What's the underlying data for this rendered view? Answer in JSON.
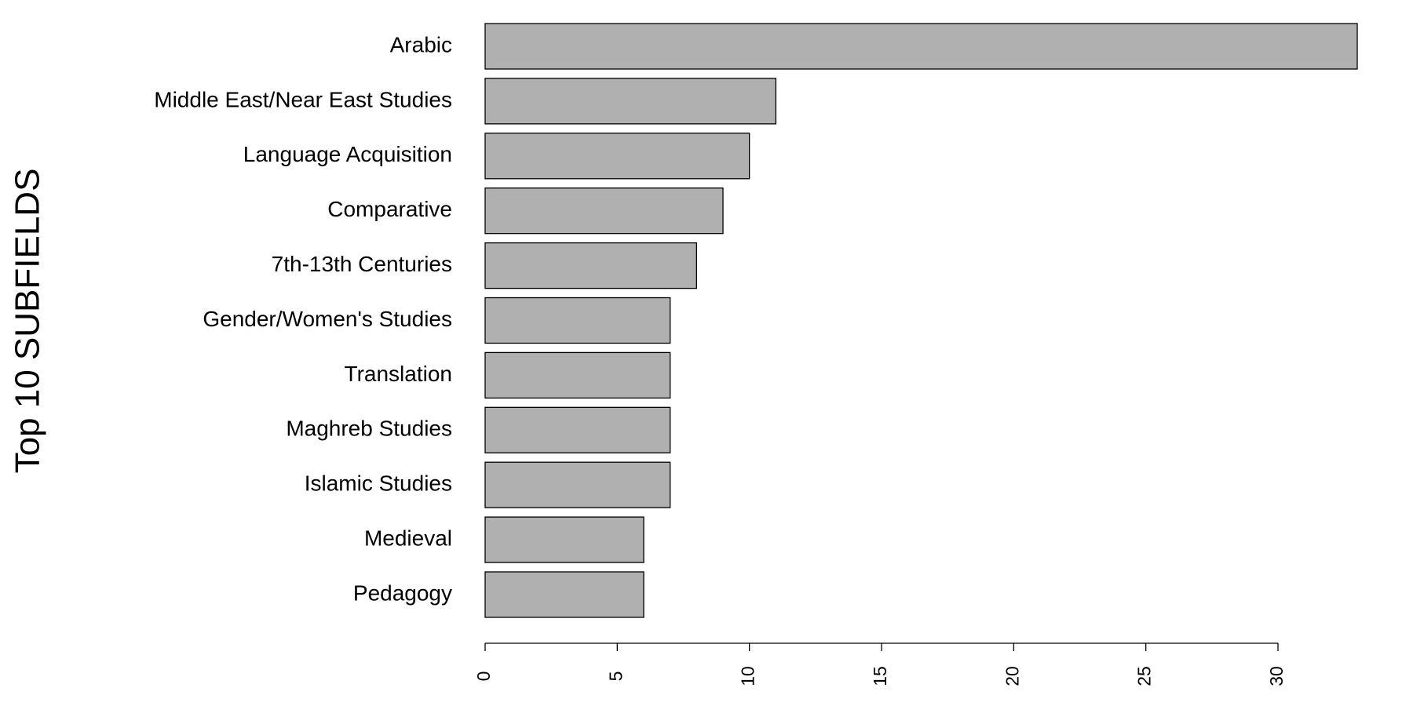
{
  "chart_data": {
    "type": "bar",
    "orientation": "horizontal",
    "ylabel": "Top 10 SUBFIELDS",
    "categories": [
      "Arabic",
      "Middle East/Near East Studies",
      "Language Acquisition",
      "Comparative",
      "7th-13th Centuries",
      "Gender/Women's Studies",
      "Translation",
      "Maghreb Studies",
      "Islamic Studies",
      "Medieval",
      "Pedagogy"
    ],
    "values": [
      33,
      11,
      10,
      9,
      8,
      7,
      7,
      7,
      7,
      6,
      6
    ],
    "color": "#b0b0b0",
    "xlim": [
      0,
      33
    ],
    "xticks": [
      0,
      5,
      10,
      15,
      20,
      25,
      30
    ],
    "grid": false
  }
}
